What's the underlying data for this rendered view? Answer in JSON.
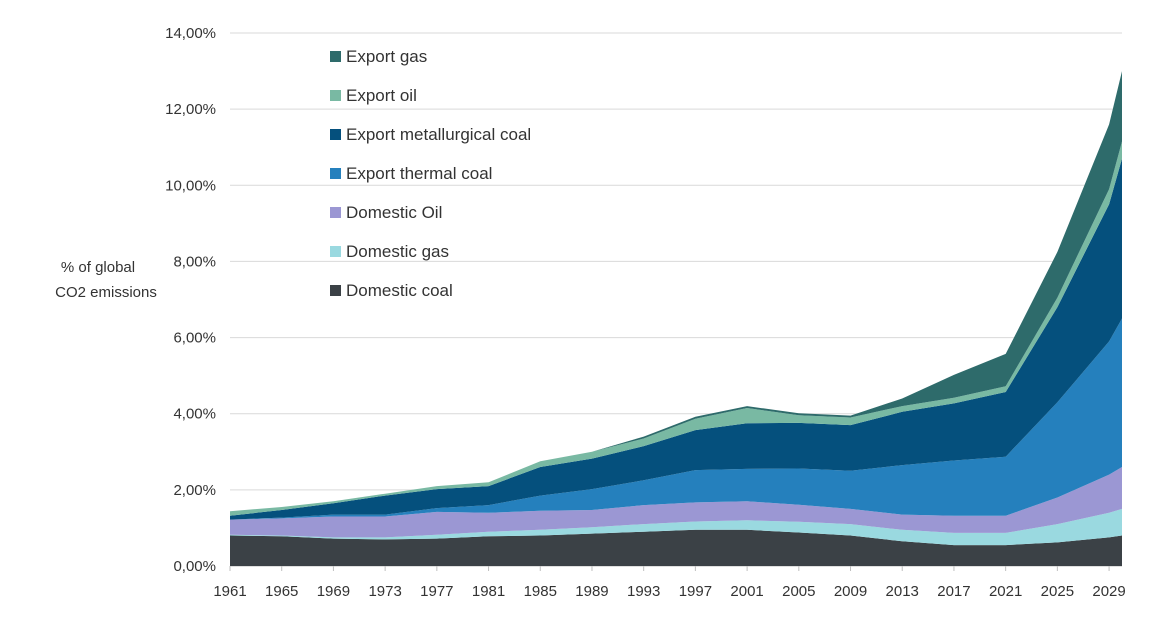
{
  "chart_data": {
    "type": "area",
    "stacked": true,
    "ylabel_lines": [
      "% of global",
      "CO2 emissions"
    ],
    "ylim": [
      0,
      14
    ],
    "yticks": [
      0,
      2,
      4,
      6,
      8,
      10,
      12,
      14
    ],
    "ytick_labels": [
      "0,00%",
      "2,00%",
      "4,00%",
      "6,00%",
      "8,00%",
      "10,00%",
      "12,00%",
      "14,00%"
    ],
    "xlim": [
      1961,
      2030
    ],
    "xticks": [
      "1961",
      "1965",
      "1969",
      "1973",
      "1977",
      "1981",
      "1985",
      "1989",
      "1993",
      "1997",
      "2001",
      "2005",
      "2009",
      "2013",
      "2017",
      "2021",
      "2025",
      "2029"
    ],
    "grid": "horizontal",
    "legend_position": "top-left (inside)",
    "legend_order": [
      "Export gas",
      "Export oil",
      "Export metallurgical coal",
      "Export thermal coal",
      "Domestic Oil",
      "Domestic gas",
      "Domestic coal"
    ],
    "x": [
      1961,
      1965,
      1969,
      1973,
      1977,
      1981,
      1985,
      1989,
      1993,
      1997,
      2001,
      2005,
      2009,
      2013,
      2017,
      2021,
      2025,
      2029,
      2030
    ],
    "series": [
      {
        "name": "Domestic coal",
        "color": "#3b4146",
        "values": [
          0.8,
          0.78,
          0.72,
          0.7,
          0.72,
          0.78,
          0.8,
          0.85,
          0.9,
          0.95,
          0.95,
          0.88,
          0.8,
          0.65,
          0.55,
          0.55,
          0.62,
          0.75,
          0.8
        ]
      },
      {
        "name": "Domestic gas",
        "color": "#9ad9e0",
        "values": [
          0.02,
          0.02,
          0.03,
          0.05,
          0.1,
          0.12,
          0.15,
          0.17,
          0.2,
          0.22,
          0.25,
          0.28,
          0.3,
          0.3,
          0.32,
          0.32,
          0.48,
          0.65,
          0.7
        ]
      },
      {
        "name": "Domestic Oil",
        "color": "#9b97d3",
        "values": [
          0.4,
          0.45,
          0.55,
          0.55,
          0.6,
          0.5,
          0.5,
          0.45,
          0.5,
          0.5,
          0.5,
          0.45,
          0.4,
          0.4,
          0.45,
          0.45,
          0.7,
          1.0,
          1.1
        ]
      },
      {
        "name": "Export thermal coal",
        "color": "#2580bd",
        "values": [
          0.0,
          0.02,
          0.05,
          0.05,
          0.1,
          0.2,
          0.4,
          0.55,
          0.65,
          0.85,
          0.85,
          0.95,
          1.0,
          1.3,
          1.45,
          1.55,
          2.5,
          3.5,
          3.9
        ]
      },
      {
        "name": "Export metallurgical coal",
        "color": "#05507d",
        "values": [
          0.1,
          0.2,
          0.3,
          0.5,
          0.5,
          0.5,
          0.75,
          0.8,
          0.9,
          1.05,
          1.2,
          1.2,
          1.2,
          1.4,
          1.5,
          1.7,
          2.5,
          3.6,
          4.2
        ]
      },
      {
        "name": "Export oil",
        "color": "#79b9a3",
        "values": [
          0.12,
          0.08,
          0.05,
          0.05,
          0.08,
          0.1,
          0.15,
          0.18,
          0.2,
          0.3,
          0.4,
          0.2,
          0.2,
          0.15,
          0.15,
          0.15,
          0.25,
          0.4,
          0.45
        ]
      },
      {
        "name": "Export gas",
        "color": "#2e6b6b",
        "values": [
          0.0,
          0.0,
          0.0,
          0.0,
          0.0,
          0.0,
          0.0,
          0.0,
          0.05,
          0.05,
          0.05,
          0.05,
          0.05,
          0.2,
          0.6,
          0.85,
          1.2,
          1.7,
          1.85
        ]
      }
    ]
  }
}
